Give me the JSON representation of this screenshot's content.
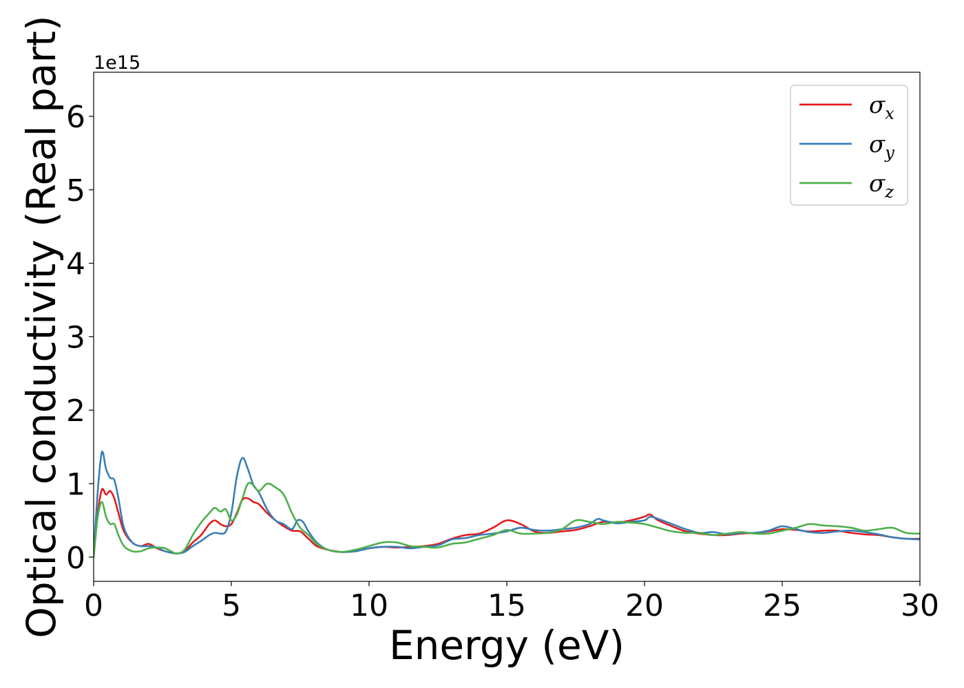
{
  "chart_data": {
    "type": "line",
    "title": "",
    "xlabel": "Energy (eV)",
    "ylabel": "Optical conductivity (Real part)",
    "y_offset_label": "1e15",
    "xlim": [
      0,
      30
    ],
    "ylim": [
      -0.33,
      6.6
    ],
    "y_scale_note": "values in units of 1e15",
    "xticks": [
      0,
      5,
      10,
      15,
      20,
      25,
      30
    ],
    "yticks": [
      0,
      1,
      2,
      3,
      4,
      5,
      6
    ],
    "grid": false,
    "legend_position": "top-right",
    "series": [
      {
        "name": "σx",
        "legend_main": "σ",
        "legend_sub": "x",
        "color": "#e41a1c",
        "x": [
          0,
          0.15,
          0.3,
          0.45,
          0.6,
          0.75,
          0.9,
          1.1,
          1.4,
          1.7,
          2.0,
          2.3,
          2.6,
          3.0,
          3.3,
          3.6,
          3.9,
          4.2,
          4.4,
          4.6,
          4.8,
          5.0,
          5.2,
          5.4,
          5.6,
          5.8,
          6.0,
          6.3,
          6.6,
          6.9,
          7.2,
          7.5,
          7.8,
          8.1,
          8.5,
          9.0,
          9.5,
          10.0,
          10.5,
          11.0,
          11.5,
          12.0,
          12.5,
          13.0,
          13.5,
          14.0,
          14.5,
          15.0,
          15.5,
          16.0,
          16.5,
          17.0,
          17.5,
          18.0,
          18.5,
          19.0,
          19.5,
          20.0,
          20.2,
          20.5,
          21.0,
          21.5,
          22.0,
          22.5,
          23.0,
          23.5,
          24.0,
          24.5,
          25.0,
          25.5,
          26.0,
          26.5,
          27.0,
          27.5,
          28.0,
          28.5,
          29.0,
          29.5,
          30.0
        ],
        "y": [
          0.0,
          0.6,
          0.92,
          0.85,
          0.9,
          0.8,
          0.6,
          0.35,
          0.2,
          0.15,
          0.18,
          0.12,
          0.08,
          0.05,
          0.08,
          0.2,
          0.3,
          0.45,
          0.5,
          0.45,
          0.42,
          0.45,
          0.6,
          0.78,
          0.8,
          0.75,
          0.72,
          0.6,
          0.5,
          0.42,
          0.36,
          0.35,
          0.25,
          0.15,
          0.1,
          0.07,
          0.08,
          0.12,
          0.14,
          0.13,
          0.14,
          0.15,
          0.18,
          0.25,
          0.3,
          0.32,
          0.4,
          0.5,
          0.45,
          0.35,
          0.33,
          0.35,
          0.37,
          0.42,
          0.48,
          0.47,
          0.5,
          0.55,
          0.58,
          0.5,
          0.42,
          0.35,
          0.32,
          0.3,
          0.3,
          0.32,
          0.33,
          0.35,
          0.38,
          0.37,
          0.35,
          0.36,
          0.36,
          0.33,
          0.31,
          0.3,
          0.27,
          0.25,
          0.25
        ]
      },
      {
        "name": "σy",
        "legend_main": "σ",
        "legend_sub": "y",
        "color": "#377eb8",
        "x": [
          0,
          0.15,
          0.3,
          0.45,
          0.6,
          0.75,
          0.9,
          1.1,
          1.4,
          1.7,
          2.0,
          2.3,
          2.6,
          3.0,
          3.3,
          3.6,
          3.9,
          4.2,
          4.4,
          4.6,
          4.8,
          5.0,
          5.2,
          5.4,
          5.6,
          5.8,
          6.0,
          6.3,
          6.6,
          6.9,
          7.2,
          7.4,
          7.6,
          7.8,
          8.1,
          8.5,
          9.0,
          9.5,
          10.0,
          10.5,
          11.0,
          11.5,
          12.0,
          12.5,
          13.0,
          13.5,
          14.0,
          14.5,
          15.0,
          15.5,
          16.0,
          16.5,
          17.0,
          17.5,
          18.0,
          18.3,
          18.5,
          19.0,
          19.5,
          20.0,
          20.2,
          20.5,
          21.0,
          21.5,
          22.0,
          22.5,
          23.0,
          23.5,
          24.0,
          24.5,
          25.0,
          25.5,
          26.0,
          26.5,
          27.0,
          27.5,
          28.0,
          28.5,
          29.0,
          29.5,
          30.0
        ],
        "y": [
          0.0,
          0.9,
          1.43,
          1.2,
          1.08,
          1.05,
          0.8,
          0.4,
          0.2,
          0.15,
          0.15,
          0.13,
          0.08,
          0.05,
          0.07,
          0.15,
          0.22,
          0.3,
          0.33,
          0.32,
          0.35,
          0.6,
          1.1,
          1.35,
          1.2,
          0.98,
          0.88,
          0.65,
          0.5,
          0.45,
          0.38,
          0.5,
          0.48,
          0.35,
          0.2,
          0.1,
          0.07,
          0.08,
          0.12,
          0.14,
          0.14,
          0.12,
          0.14,
          0.16,
          0.24,
          0.26,
          0.3,
          0.32,
          0.35,
          0.4,
          0.37,
          0.36,
          0.38,
          0.4,
          0.45,
          0.52,
          0.5,
          0.46,
          0.48,
          0.5,
          0.55,
          0.52,
          0.45,
          0.38,
          0.33,
          0.34,
          0.31,
          0.33,
          0.33,
          0.36,
          0.42,
          0.38,
          0.34,
          0.33,
          0.35,
          0.36,
          0.34,
          0.31,
          0.27,
          0.25,
          0.24
        ]
      },
      {
        "name": "σz",
        "legend_main": "σ",
        "legend_sub": "z",
        "color": "#4daf4a",
        "x": [
          0,
          0.15,
          0.3,
          0.45,
          0.6,
          0.75,
          0.9,
          1.1,
          1.4,
          1.7,
          2.0,
          2.3,
          2.6,
          3.0,
          3.3,
          3.6,
          3.9,
          4.2,
          4.4,
          4.6,
          4.8,
          5.0,
          5.2,
          5.4,
          5.6,
          5.8,
          6.0,
          6.3,
          6.6,
          6.9,
          7.2,
          7.5,
          7.8,
          8.1,
          8.5,
          9.0,
          9.5,
          10.0,
          10.5,
          11.0,
          11.5,
          12.0,
          12.5,
          13.0,
          13.5,
          14.0,
          14.5,
          15.0,
          15.5,
          16.0,
          16.5,
          17.0,
          17.5,
          18.0,
          18.5,
          19.0,
          19.5,
          20.0,
          20.5,
          21.0,
          21.5,
          22.0,
          22.5,
          23.0,
          23.5,
          24.0,
          24.5,
          25.0,
          25.5,
          26.0,
          26.5,
          27.0,
          27.5,
          28.0,
          28.5,
          29.0,
          29.5,
          30.0
        ],
        "y": [
          0.0,
          0.55,
          0.75,
          0.55,
          0.45,
          0.45,
          0.3,
          0.15,
          0.08,
          0.08,
          0.12,
          0.13,
          0.12,
          0.05,
          0.1,
          0.3,
          0.47,
          0.6,
          0.67,
          0.62,
          0.65,
          0.5,
          0.58,
          0.8,
          1.0,
          0.98,
          0.9,
          1.0,
          0.95,
          0.85,
          0.6,
          0.4,
          0.3,
          0.18,
          0.1,
          0.07,
          0.1,
          0.15,
          0.2,
          0.2,
          0.15,
          0.14,
          0.13,
          0.18,
          0.2,
          0.25,
          0.3,
          0.37,
          0.32,
          0.32,
          0.33,
          0.38,
          0.5,
          0.48,
          0.45,
          0.48,
          0.47,
          0.45,
          0.4,
          0.35,
          0.33,
          0.33,
          0.3,
          0.32,
          0.34,
          0.32,
          0.32,
          0.36,
          0.4,
          0.45,
          0.43,
          0.42,
          0.4,
          0.36,
          0.38,
          0.4,
          0.33,
          0.32
        ]
      }
    ]
  }
}
